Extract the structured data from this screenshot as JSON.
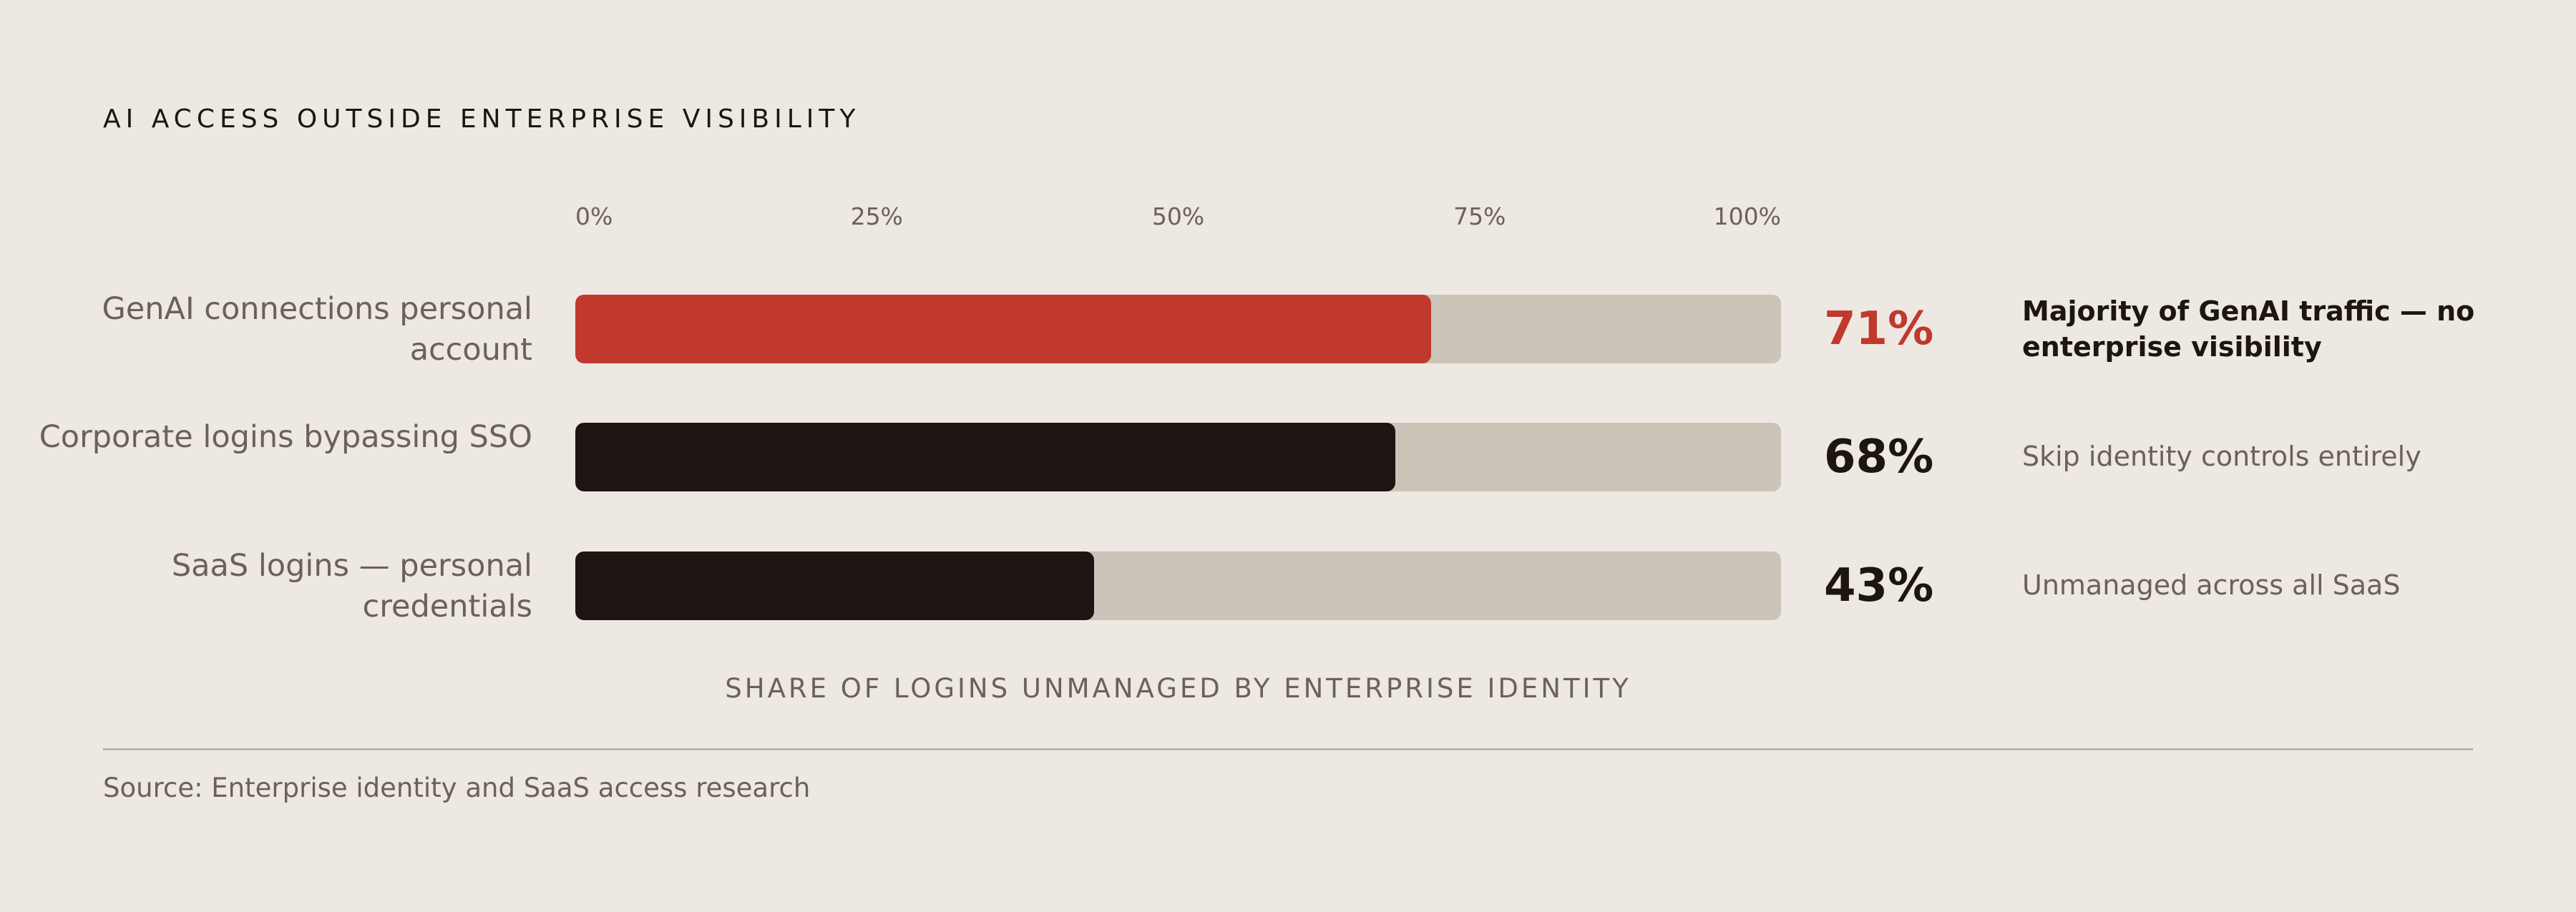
{
  "title": "AI ACCESS OUTSIDE ENTERPRISE VISIBILITY",
  "axis_title": "SHARE OF LOGINS UNMANAGED BY ENTERPRISE IDENTITY",
  "source": "Source: Enterprise identity and SaaS access research",
  "colors": {
    "background": "#ede8e1",
    "track": "#cac4b9",
    "highlight": "#c1382d",
    "bar": "#1c1512"
  },
  "chart_data": {
    "type": "bar",
    "orientation": "horizontal",
    "title": "AI ACCESS OUTSIDE ENTERPRISE VISIBILITY",
    "xlabel": "SHARE OF LOGINS UNMANAGED BY ENTERPRISE IDENTITY",
    "ylabel": "",
    "xlim": [
      0,
      100
    ],
    "x_ticks": [
      "0%",
      "25%",
      "50%",
      "75%",
      "100%"
    ],
    "grid": false,
    "categories": [
      "GenAI connections personal account",
      "Corporate logins bypassing SSO",
      "SaaS logins — personal credentials"
    ],
    "values": [
      71,
      68,
      43
    ],
    "value_labels": [
      "71%",
      "68%",
      "43%"
    ],
    "annotations": [
      "Majority of GenAI traffic — no enterprise visibility",
      "Skip identity controls entirely",
      "Unmanaged across all SaaS"
    ],
    "highlight_index": 0
  }
}
